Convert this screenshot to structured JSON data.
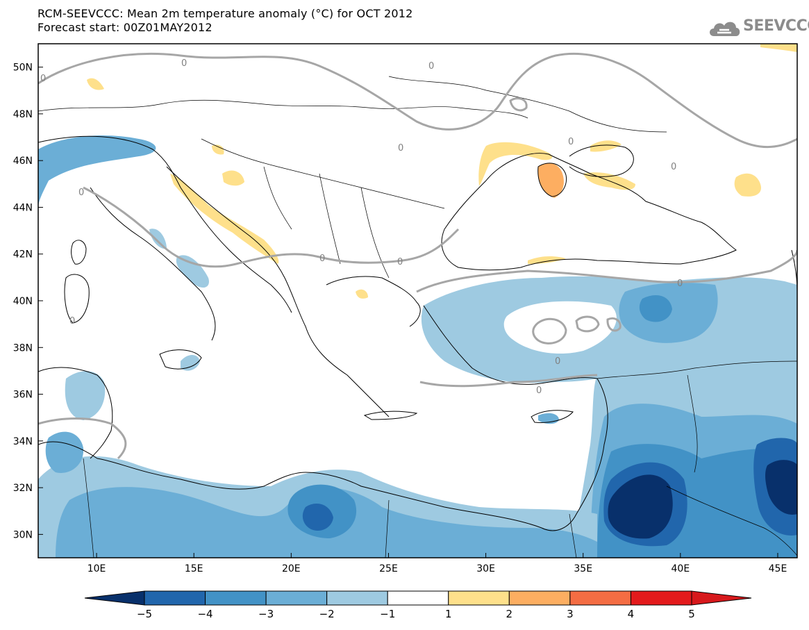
{
  "header": {
    "title": "RCM-SEEVCCC: Mean 2m temperature anomaly (°C) for OCT 2012",
    "subtitle": "Forecast start: 00Z01MAY2012"
  },
  "logo": {
    "text": "SEEVCCC",
    "icon": "cloud-icon"
  },
  "map": {
    "lon_range": [
      7,
      46
    ],
    "lat_range": [
      29,
      51
    ],
    "x_ticks": [
      "10E",
      "15E",
      "20E",
      "25E",
      "30E",
      "35E",
      "40E",
      "45E"
    ],
    "y_ticks": [
      "50N",
      "48N",
      "46N",
      "44N",
      "42N",
      "40N",
      "38N",
      "36N",
      "34N",
      "32N",
      "30N"
    ],
    "contour_label": "0"
  },
  "colorbar": {
    "levels": [
      "−5",
      "−4",
      "−3",
      "−2",
      "−1",
      "1",
      "2",
      "3",
      "4",
      "5"
    ],
    "colors": [
      "#08306b",
      "#2166ac",
      "#4292c6",
      "#6baed6",
      "#9ecae1",
      "#ffffff",
      "#fee08b",
      "#fdae61",
      "#f46d43",
      "#e31a1c",
      "#d7191c"
    ]
  }
}
